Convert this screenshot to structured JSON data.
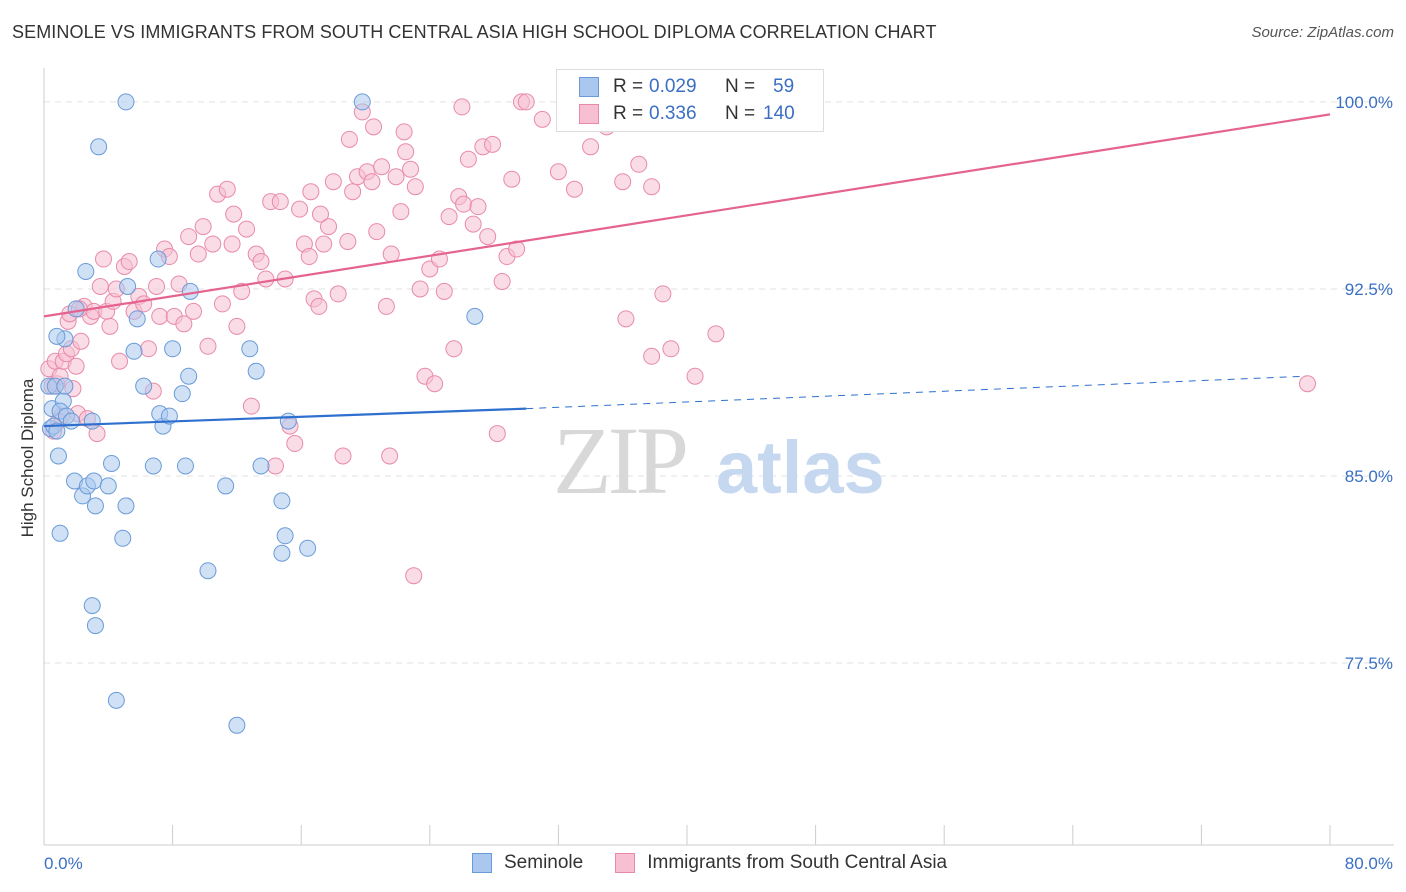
{
  "header": {
    "title": "SEMINOLE VS IMMIGRANTS FROM SOUTH CENTRAL ASIA HIGH SCHOOL DIPLOMA CORRELATION CHART",
    "source": "Source: ZipAtlas.com"
  },
  "watermark": {
    "zip": "ZIP",
    "atlas": "atlas"
  },
  "legend": {
    "rows": [
      {
        "r_label": "R =",
        "r_value": "0.029",
        "n_label": "N =",
        "n_value": "59",
        "color": "#aac8ef",
        "border": "#6a9bd8"
      },
      {
        "r_label": "R =",
        "r_value": "0.336",
        "n_label": "N =",
        "n_value": "140",
        "color": "#f6c0d2",
        "border": "#e98aab"
      }
    ]
  },
  "bottom_legend": [
    {
      "label": "Seminole",
      "color": "#aac8ef",
      "border": "#6a9bd8"
    },
    {
      "label": "Immigrants from South Central Asia",
      "color": "#f6c0d2",
      "border": "#e98aab"
    }
  ],
  "chart_data": {
    "type": "scatter",
    "title": "SEMINOLE VS IMMIGRANTS FROM SOUTH CENTRAL ASIA HIGH SCHOOL DIPLOMA CORRELATION CHART",
    "xlabel": "",
    "ylabel": "High School Diploma",
    "xlim": [
      0,
      80
    ],
    "ylim": [
      70.2,
      101.2
    ],
    "x_tick_labels": [
      "0.0%",
      "80.0%"
    ],
    "y_ticks": [
      77.5,
      85.0,
      92.5,
      100.0
    ],
    "y_tick_labels": [
      "77.5%",
      "85.0%",
      "92.5%",
      "100.0%"
    ],
    "grid": "horizontal dashed",
    "series": [
      {
        "name": "Seminole",
        "color": "#6a9bd8",
        "fill": "#aac8ef",
        "trend": {
          "x": [
            0,
            30
          ],
          "y": [
            87.0,
            87.7
          ],
          "dashed_to": [
            78.5,
            89.0
          ]
        },
        "points": [
          [
            0.3,
            88.6
          ],
          [
            0.5,
            87.7
          ],
          [
            0.4,
            86.9
          ],
          [
            0.6,
            87.0
          ],
          [
            0.7,
            88.6
          ],
          [
            0.9,
            85.8
          ],
          [
            0.8,
            86.8
          ],
          [
            1.2,
            88.0
          ],
          [
            1.0,
            87.6
          ],
          [
            1.4,
            87.4
          ],
          [
            1.7,
            87.2
          ],
          [
            1.3,
            90.5
          ],
          [
            1.3,
            88.6
          ],
          [
            2.0,
            91.7
          ],
          [
            2.6,
            93.2
          ],
          [
            3.0,
            87.2
          ],
          [
            1.9,
            84.8
          ],
          [
            2.4,
            84.2
          ],
          [
            2.7,
            84.6
          ],
          [
            3.1,
            84.8
          ],
          [
            3.2,
            83.8
          ],
          [
            4.0,
            84.6
          ],
          [
            4.2,
            85.5
          ],
          [
            4.9,
            82.5
          ],
          [
            1.0,
            82.7
          ],
          [
            3.0,
            79.8
          ],
          [
            3.2,
            79.0
          ],
          [
            4.5,
            76.0
          ],
          [
            5.1,
            83.8
          ],
          [
            5.6,
            90.0
          ],
          [
            6.2,
            88.6
          ],
          [
            5.8,
            91.3
          ],
          [
            5.2,
            92.6
          ],
          [
            6.8,
            85.4
          ],
          [
            7.4,
            87.0
          ],
          [
            7.2,
            87.5
          ],
          [
            7.8,
            87.4
          ],
          [
            7.1,
            93.7
          ],
          [
            8.0,
            90.1
          ],
          [
            8.6,
            88.3
          ],
          [
            8.8,
            85.4
          ],
          [
            9.0,
            89.0
          ],
          [
            9.1,
            92.4
          ],
          [
            11.3,
            84.6
          ],
          [
            10.2,
            81.2
          ],
          [
            12.0,
            75.0
          ],
          [
            12.8,
            90.1
          ],
          [
            13.2,
            89.2
          ],
          [
            13.5,
            85.4
          ],
          [
            15.2,
            87.2
          ],
          [
            14.8,
            84.0
          ],
          [
            15.0,
            82.6
          ],
          [
            14.8,
            81.9
          ],
          [
            16.4,
            82.1
          ],
          [
            19.8,
            100.0
          ],
          [
            5.1,
            100.0
          ],
          [
            3.4,
            98.2
          ],
          [
            26.8,
            91.4
          ],
          [
            0.8,
            90.6
          ]
        ]
      },
      {
        "name": "Immigrants from South Central Asia",
        "color": "#e98aab",
        "fill": "#f6c0d2",
        "trend": {
          "x": [
            0,
            80
          ],
          "y": [
            91.4,
            99.5
          ]
        },
        "points": [
          [
            0.3,
            89.3
          ],
          [
            0.5,
            88.6
          ],
          [
            0.6,
            86.8
          ],
          [
            0.7,
            89.6
          ],
          [
            0.8,
            88.7
          ],
          [
            1.0,
            89.0
          ],
          [
            1.1,
            87.4
          ],
          [
            1.2,
            89.6
          ],
          [
            1.4,
            89.9
          ],
          [
            1.5,
            91.2
          ],
          [
            1.7,
            90.1
          ],
          [
            1.8,
            88.5
          ],
          [
            2.0,
            89.4
          ],
          [
            2.1,
            87.5
          ],
          [
            2.3,
            90.4
          ],
          [
            2.5,
            91.8
          ],
          [
            2.7,
            87.3
          ],
          [
            2.9,
            91.4
          ],
          [
            3.1,
            91.6
          ],
          [
            3.3,
            86.7
          ],
          [
            3.5,
            92.6
          ],
          [
            3.7,
            93.7
          ],
          [
            3.9,
            91.6
          ],
          [
            4.1,
            91.0
          ],
          [
            4.3,
            92.0
          ],
          [
            4.5,
            92.5
          ],
          [
            4.7,
            89.6
          ],
          [
            5.0,
            93.4
          ],
          [
            5.3,
            93.6
          ],
          [
            5.6,
            91.6
          ],
          [
            5.9,
            92.2
          ],
          [
            6.2,
            91.9
          ],
          [
            6.5,
            90.1
          ],
          [
            6.8,
            88.4
          ],
          [
            7.0,
            92.6
          ],
          [
            7.2,
            91.4
          ],
          [
            7.5,
            94.1
          ],
          [
            7.8,
            93.8
          ],
          [
            8.1,
            91.4
          ],
          [
            8.4,
            92.7
          ],
          [
            8.7,
            91.1
          ],
          [
            9.0,
            94.6
          ],
          [
            9.3,
            91.6
          ],
          [
            9.6,
            93.9
          ],
          [
            9.9,
            95.0
          ],
          [
            10.2,
            90.2
          ],
          [
            10.5,
            94.3
          ],
          [
            10.8,
            96.3
          ],
          [
            11.1,
            91.9
          ],
          [
            11.4,
            96.5
          ],
          [
            11.7,
            94.3
          ],
          [
            12.0,
            91.0
          ],
          [
            12.3,
            92.4
          ],
          [
            12.6,
            94.9
          ],
          [
            12.9,
            87.8
          ],
          [
            13.2,
            93.9
          ],
          [
            13.5,
            93.6
          ],
          [
            13.8,
            92.9
          ],
          [
            14.1,
            96.0
          ],
          [
            14.4,
            85.4
          ],
          [
            14.7,
            96.0
          ],
          [
            15.0,
            92.9
          ],
          [
            15.3,
            87.0
          ],
          [
            15.6,
            86.3
          ],
          [
            15.9,
            95.7
          ],
          [
            16.2,
            94.3
          ],
          [
            16.5,
            93.8
          ],
          [
            16.8,
            92.1
          ],
          [
            17.1,
            91.8
          ],
          [
            17.4,
            94.3
          ],
          [
            17.7,
            95.0
          ],
          [
            18.0,
            96.8
          ],
          [
            18.3,
            92.3
          ],
          [
            18.6,
            85.8
          ],
          [
            18.9,
            94.4
          ],
          [
            19.2,
            96.4
          ],
          [
            19.5,
            97.0
          ],
          [
            19.8,
            99.6
          ],
          [
            20.1,
            97.2
          ],
          [
            20.4,
            96.8
          ],
          [
            20.7,
            94.8
          ],
          [
            21.0,
            97.4
          ],
          [
            21.3,
            91.8
          ],
          [
            21.6,
            93.9
          ],
          [
            21.9,
            97.0
          ],
          [
            22.2,
            95.6
          ],
          [
            22.5,
            98.0
          ],
          [
            22.8,
            97.3
          ],
          [
            23.1,
            96.6
          ],
          [
            23.4,
            92.5
          ],
          [
            23.7,
            89.0
          ],
          [
            24.0,
            93.3
          ],
          [
            24.3,
            88.7
          ],
          [
            24.6,
            93.7
          ],
          [
            24.9,
            92.4
          ],
          [
            25.2,
            95.4
          ],
          [
            25.5,
            90.1
          ],
          [
            25.8,
            96.2
          ],
          [
            26.1,
            95.9
          ],
          [
            26.4,
            97.7
          ],
          [
            26.7,
            95.1
          ],
          [
            27.0,
            95.8
          ],
          [
            27.3,
            98.2
          ],
          [
            27.6,
            94.6
          ],
          [
            27.9,
            98.3
          ],
          [
            28.2,
            86.7
          ],
          [
            28.5,
            92.8
          ],
          [
            28.8,
            93.8
          ],
          [
            29.1,
            96.9
          ],
          [
            29.4,
            94.1
          ],
          [
            29.7,
            100.0
          ],
          [
            30.0,
            100.0
          ],
          [
            31.0,
            99.3
          ],
          [
            32.0,
            97.2
          ],
          [
            33.0,
            96.5
          ],
          [
            34.0,
            98.2
          ],
          [
            35.0,
            99.0
          ],
          [
            36.0,
            96.8
          ],
          [
            37.0,
            97.5
          ],
          [
            37.8,
            96.6
          ],
          [
            38.5,
            92.3
          ],
          [
            39.0,
            90.1
          ],
          [
            40.5,
            89.0
          ],
          [
            41.8,
            90.7
          ],
          [
            36.2,
            91.3
          ],
          [
            37.8,
            89.8
          ],
          [
            0.9,
            87.2
          ],
          [
            1.6,
            91.5
          ],
          [
            2.2,
            91.7
          ],
          [
            19.0,
            98.5
          ],
          [
            20.5,
            99.0
          ],
          [
            22.4,
            98.8
          ],
          [
            26.0,
            99.8
          ],
          [
            16.6,
            96.4
          ],
          [
            17.2,
            95.5
          ],
          [
            11.8,
            95.5
          ],
          [
            21.5,
            85.8
          ],
          [
            23.0,
            81.0
          ],
          [
            78.6,
            88.7
          ],
          [
            34.0,
            99.8
          ]
        ]
      }
    ]
  }
}
